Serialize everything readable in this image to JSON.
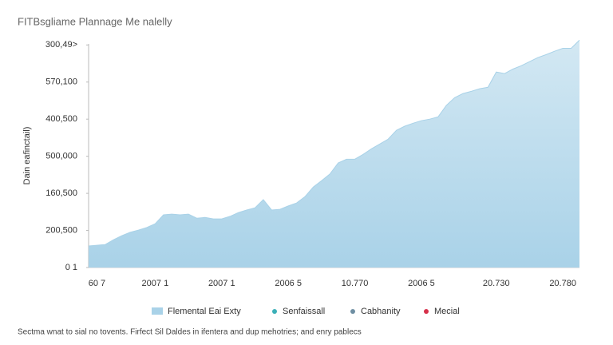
{
  "chart_data": {
    "type": "area",
    "title": "FITBsgliame Plannage Me nalelly",
    "ylabel": "Dain eafinctail)",
    "footnote": "Sectma wnat to sial no tovents. Firfect Sil Daldes in ifentera and dup mehotries; and enry pablecs",
    "categories": [
      null,
      "60 7",
      null,
      null,
      null,
      null,
      null,
      null,
      "2007 1",
      null,
      null,
      null,
      null,
      null,
      null,
      null,
      "2007 1",
      null,
      null,
      null,
      null,
      null,
      null,
      null,
      "2006 5",
      null,
      null,
      null,
      null,
      null,
      null,
      null,
      "10.770",
      null,
      null,
      null,
      null,
      null,
      null,
      null,
      "2006 5",
      null,
      null,
      null,
      null,
      null,
      null,
      null,
      null,
      "20.730",
      null,
      null,
      null,
      null,
      null,
      null,
      null,
      "20.780",
      null,
      null
    ],
    "series": [
      {
        "name": "Flemental Eai Exty",
        "color": "#a9d2e8",
        "values": [
          0.58,
          0.6,
          0.62,
          0.75,
          0.86,
          0.95,
          1.01,
          1.08,
          1.18,
          1.42,
          1.44,
          1.42,
          1.44,
          1.33,
          1.35,
          1.31,
          1.31,
          1.38,
          1.48,
          1.55,
          1.61,
          1.83,
          1.55,
          1.57,
          1.66,
          1.74,
          1.91,
          2.17,
          2.34,
          2.52,
          2.82,
          2.92,
          2.92,
          3.05,
          3.2,
          3.33,
          3.46,
          3.7,
          3.81,
          3.89,
          3.96,
          4.0,
          4.06,
          4.37,
          4.58,
          4.69,
          4.75,
          4.82,
          4.86,
          5.27,
          5.23,
          5.35,
          5.44,
          5.55,
          5.66,
          5.74,
          5.83,
          5.91,
          5.91,
          6.13
        ]
      }
    ],
    "legend_extra": [
      {
        "name": "Senfaissall",
        "color": "#3bb0b8"
      },
      {
        "name": "Cabhanity",
        "color": "#6f8fa3"
      },
      {
        "name": "Mecial",
        "color": "#d6304a"
      }
    ],
    "ylim": [
      0,
      6.2
    ],
    "yticks": [
      {
        "value": 0,
        "label": "0 1"
      },
      {
        "value": 1,
        "label": "200,500"
      },
      {
        "value": 2,
        "label": "160,500"
      },
      {
        "value": 3,
        "label": "500,000"
      },
      {
        "value": 4,
        "label": "400,500"
      },
      {
        "value": 5,
        "label": "570,100"
      },
      {
        "value": 6,
        "label": "300,49>"
      }
    ]
  }
}
